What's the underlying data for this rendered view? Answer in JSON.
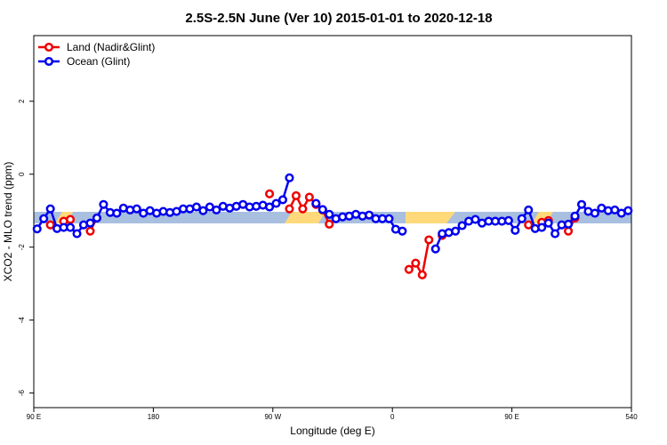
{
  "chart_data": {
    "type": "line",
    "title": "2.5S-2.5N June (Ver 10)   2015-01-01 to 2020-12-18",
    "x_label": "Longitude (deg E)",
    "y_label": "XCO2 - MLO trend (ppm)",
    "xlim": [
      90,
      540
    ],
    "ylim": [
      -6.4,
      3.8
    ],
    "xticks": [
      {
        "value": 90,
        "label": "90 E"
      },
      180,
      {
        "value": 270,
        "label": "90 W"
      },
      {
        "value": 360,
        "label": "0"
      },
      {
        "value": 450,
        "label": "90 E"
      },
      540
    ],
    "yticks": [
      -6,
      -4,
      -2,
      0,
      2
    ],
    "legend": "top-left",
    "x": [
      92.5,
      97.5,
      102.5,
      107.5,
      112.5,
      117.5,
      122.5,
      127.5,
      132.5,
      137.5,
      142.5,
      147.5,
      152.5,
      157.5,
      162.5,
      167.5,
      172.5,
      177.5,
      182.5,
      187.5,
      192.5,
      197.5,
      202.5,
      207.5,
      212.5,
      217.5,
      222.5,
      227.5,
      232.5,
      237.5,
      242.5,
      247.5,
      252.5,
      257.5,
      262.5,
      267.5,
      272.5,
      277.5,
      282.5,
      287.5,
      292.5,
      297.5,
      302.5,
      307.5,
      312.5,
      317.5,
      322.5,
      327.5,
      332.5,
      337.5,
      342.5,
      347.5,
      352.5,
      357.5,
      362.5,
      367.5,
      372.5,
      377.5,
      382.5,
      387.5,
      392.5,
      397.5,
      402.5,
      407.5,
      412.5,
      417.5,
      422.5,
      427.5,
      432.5,
      437.5,
      442.5,
      447.5,
      452.5,
      457.5,
      462.5,
      467.5,
      472.5,
      477.5,
      482.5,
      487.5,
      492.5,
      497.5,
      502.5,
      507.5,
      512.5,
      517.5,
      522.5,
      527.5,
      532.5,
      537.5
    ],
    "series": [
      {
        "name": "Land (Nadir&Glint)",
        "color": "#ee0000",
        "values": [
          null,
          null,
          -1.39,
          null,
          -1.29,
          -1.24,
          null,
          null,
          -1.56,
          -1.2,
          null,
          null,
          null,
          null,
          null,
          null,
          null,
          null,
          null,
          null,
          null,
          null,
          null,
          null,
          null,
          null,
          null,
          null,
          null,
          null,
          null,
          null,
          null,
          null,
          null,
          -0.54,
          null,
          null,
          -0.95,
          -0.59,
          -0.95,
          -0.63,
          -0.83,
          -0.98,
          -1.37,
          null,
          null,
          null,
          null,
          null,
          null,
          null,
          null,
          null,
          null,
          null,
          -2.61,
          -2.44,
          -2.76,
          -1.8,
          null,
          -1.68,
          null,
          null,
          null,
          null,
          null,
          null,
          null,
          null,
          null,
          null,
          null,
          null,
          -1.39,
          null,
          -1.32,
          -1.27,
          null,
          null,
          -1.56,
          -1.2,
          null,
          null,
          null,
          null,
          null,
          null,
          null,
          null
        ]
      },
      {
        "name": "Ocean (Glint)",
        "color": "#0000ee",
        "values": [
          -1.5,
          -1.22,
          -0.95,
          -1.49,
          -1.46,
          -1.46,
          -1.63,
          -1.39,
          -1.34,
          -1.2,
          -0.83,
          -1.05,
          -1.07,
          -0.93,
          -0.98,
          -0.95,
          -1.07,
          -1.0,
          -1.07,
          -1.02,
          -1.05,
          -1.02,
          -0.95,
          -0.95,
          -0.9,
          -1.0,
          -0.9,
          -0.98,
          -0.88,
          -0.93,
          -0.88,
          -0.83,
          -0.9,
          -0.88,
          -0.85,
          -0.9,
          -0.8,
          -0.7,
          -0.1,
          null,
          null,
          null,
          -0.8,
          -0.97,
          -1.1,
          -1.22,
          -1.17,
          -1.15,
          -1.1,
          -1.15,
          -1.12,
          -1.22,
          -1.22,
          -1.22,
          -1.51,
          -1.56,
          null,
          null,
          null,
          null,
          -2.05,
          -1.63,
          -1.6,
          -1.56,
          -1.41,
          -1.29,
          -1.24,
          -1.34,
          -1.29,
          -1.29,
          -1.29,
          -1.27,
          -1.54,
          -1.22,
          -0.98,
          -1.49,
          -1.46,
          -1.34,
          -1.63,
          -1.39,
          -1.37,
          -1.15,
          -0.83,
          -1.02,
          -1.07,
          -0.93,
          -1.0,
          -0.98,
          -1.07,
          -1.0
        ]
      }
    ]
  }
}
